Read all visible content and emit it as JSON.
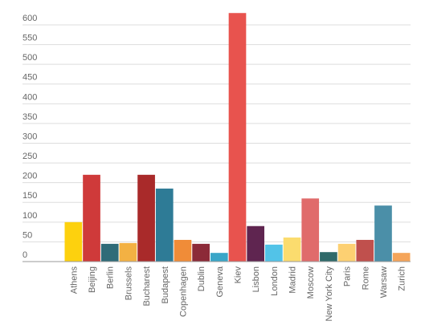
{
  "chart_data": {
    "type": "bar",
    "categories": [
      "Athens",
      "Beijing",
      "Berlin",
      "Brussels",
      "Bucharest",
      "Budapest",
      "Copenhagen",
      "Dublin",
      "Geneva",
      "Kiev",
      "Lisbon",
      "London",
      "Madrid",
      "Moscow",
      "New York City",
      "Paris",
      "Rome",
      "Warsaw",
      "Zurich"
    ],
    "values": [
      100,
      220,
      45,
      47,
      220,
      185,
      55,
      45,
      22,
      630,
      90,
      43,
      61,
      160,
      24,
      45,
      55,
      142,
      22
    ],
    "colors": [
      "#fdd10e",
      "#cf3a3a",
      "#2f6b78",
      "#f3b143",
      "#a92a2a",
      "#2e7b96",
      "#f08c38",
      "#8c2a38",
      "#3aa6c8",
      "#e8534e",
      "#5f2550",
      "#52c3e8",
      "#fbdc6e",
      "#e06b6b",
      "#2f6a6a",
      "#fdd072",
      "#c0504d",
      "#4b8fa8",
      "#f5a55a"
    ],
    "ylim": [
      0,
      650
    ],
    "yticks": [
      0,
      50,
      100,
      150,
      200,
      250,
      300,
      350,
      400,
      450,
      500,
      550,
      600
    ],
    "grid": true
  }
}
